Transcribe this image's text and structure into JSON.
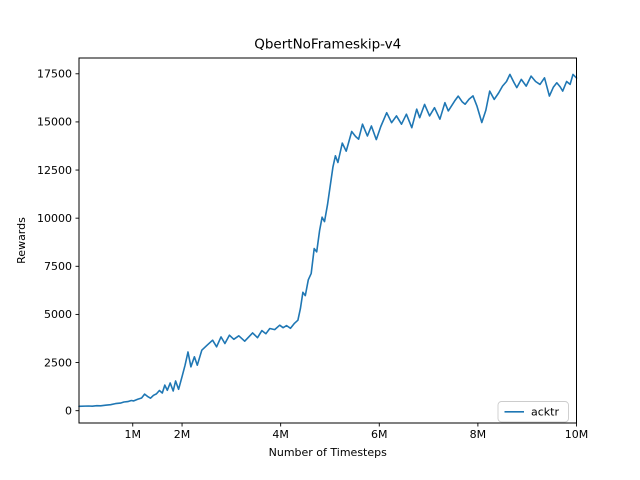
{
  "figure": {
    "background": "#ffffff"
  },
  "chart_data": {
    "type": "line",
    "title": "QbertNoFrameskip-v4",
    "xlabel": "Number of Timesteps",
    "ylabel": "Rewards",
    "x_unit": "millions of timesteps",
    "xlim_millions": [
      -0.09,
      10
    ],
    "ylim": [
      -640,
      18320
    ],
    "grid": false,
    "x_ticks": [
      {
        "value": 1,
        "label": "1M"
      },
      {
        "value": 2,
        "label": "2M"
      },
      {
        "value": 4,
        "label": "4M"
      },
      {
        "value": 6,
        "label": "6M"
      },
      {
        "value": 8,
        "label": "8M"
      },
      {
        "value": 10,
        "label": "10M"
      }
    ],
    "y_ticks": [
      {
        "value": 0,
        "label": "0"
      },
      {
        "value": 2500,
        "label": "2500"
      },
      {
        "value": 5000,
        "label": "5000"
      },
      {
        "value": 7500,
        "label": "7500"
      },
      {
        "value": 10000,
        "label": "10000"
      },
      {
        "value": 12500,
        "label": "12500"
      },
      {
        "value": 15000,
        "label": "15000"
      },
      {
        "value": 17500,
        "label": "17500"
      }
    ],
    "legend": {
      "position": "lower right",
      "entries": [
        {
          "label": "acktr",
          "color": "#1f77b4"
        }
      ]
    },
    "series": [
      {
        "name": "acktr",
        "color": "#1f77b4",
        "x_millions": [
          -0.09,
          0.1,
          0.18,
          0.27,
          0.35,
          0.45,
          0.55,
          0.65,
          0.75,
          0.82,
          0.9,
          0.97,
          1.02,
          1.1,
          1.18,
          1.24,
          1.3,
          1.36,
          1.42,
          1.48,
          1.54,
          1.6,
          1.65,
          1.7,
          1.76,
          1.82,
          1.87,
          1.93,
          2.0,
          2.06,
          2.12,
          2.18,
          2.25,
          2.31,
          2.4,
          2.5,
          2.62,
          2.7,
          2.79,
          2.87,
          2.96,
          3.05,
          3.15,
          3.27,
          3.43,
          3.53,
          3.62,
          3.7,
          3.78,
          3.88,
          3.98,
          4.05,
          4.12,
          4.2,
          4.28,
          4.35,
          4.4,
          4.45,
          4.5,
          4.56,
          4.62,
          4.68,
          4.73,
          4.79,
          4.84,
          4.89,
          4.95,
          5.0,
          5.06,
          5.11,
          5.16,
          5.25,
          5.33,
          5.44,
          5.52,
          5.58,
          5.66,
          5.76,
          5.84,
          5.94,
          6.03,
          6.15,
          6.25,
          6.35,
          6.45,
          6.55,
          6.66,
          6.76,
          6.82,
          6.92,
          7.02,
          7.12,
          7.23,
          7.33,
          7.4,
          7.53,
          7.6,
          7.68,
          7.74,
          7.82,
          7.9,
          7.98,
          8.08,
          8.16,
          8.24,
          8.33,
          8.42,
          8.5,
          8.58,
          8.65,
          8.73,
          8.79,
          8.88,
          8.98,
          9.08,
          9.17,
          9.26,
          9.35,
          9.45,
          9.53,
          9.6,
          9.67,
          9.72,
          9.8,
          9.87,
          9.93,
          10.0
        ],
        "y": [
          228,
          245,
          235,
          260,
          255,
          285,
          310,
          370,
          395,
          450,
          470,
          530,
          510,
          590,
          660,
          860,
          740,
          650,
          800,
          870,
          1050,
          920,
          1330,
          1060,
          1440,
          1020,
          1540,
          1110,
          1780,
          2350,
          3050,
          2280,
          2800,
          2360,
          3140,
          3380,
          3660,
          3320,
          3830,
          3490,
          3920,
          3710,
          3890,
          3610,
          4040,
          3790,
          4160,
          4000,
          4270,
          4210,
          4440,
          4310,
          4420,
          4280,
          4540,
          4700,
          5300,
          6150,
          5980,
          6800,
          7130,
          8420,
          8250,
          9360,
          10050,
          9820,
          10700,
          11600,
          12650,
          13240,
          12890,
          13900,
          13480,
          14500,
          14240,
          14100,
          14880,
          14270,
          14790,
          14080,
          14760,
          15480,
          14960,
          15310,
          14880,
          15400,
          14700,
          15660,
          15220,
          15910,
          15310,
          15740,
          15140,
          16000,
          15570,
          16090,
          16340,
          16050,
          15920,
          16180,
          16350,
          15830,
          14970,
          15600,
          16600,
          16170,
          16500,
          16860,
          17100,
          17470,
          17050,
          16780,
          17210,
          16860,
          17380,
          17100,
          16950,
          17290,
          16340,
          16800,
          17030,
          16820,
          16600,
          17100,
          16950,
          17470,
          17280
        ]
      }
    ]
  }
}
